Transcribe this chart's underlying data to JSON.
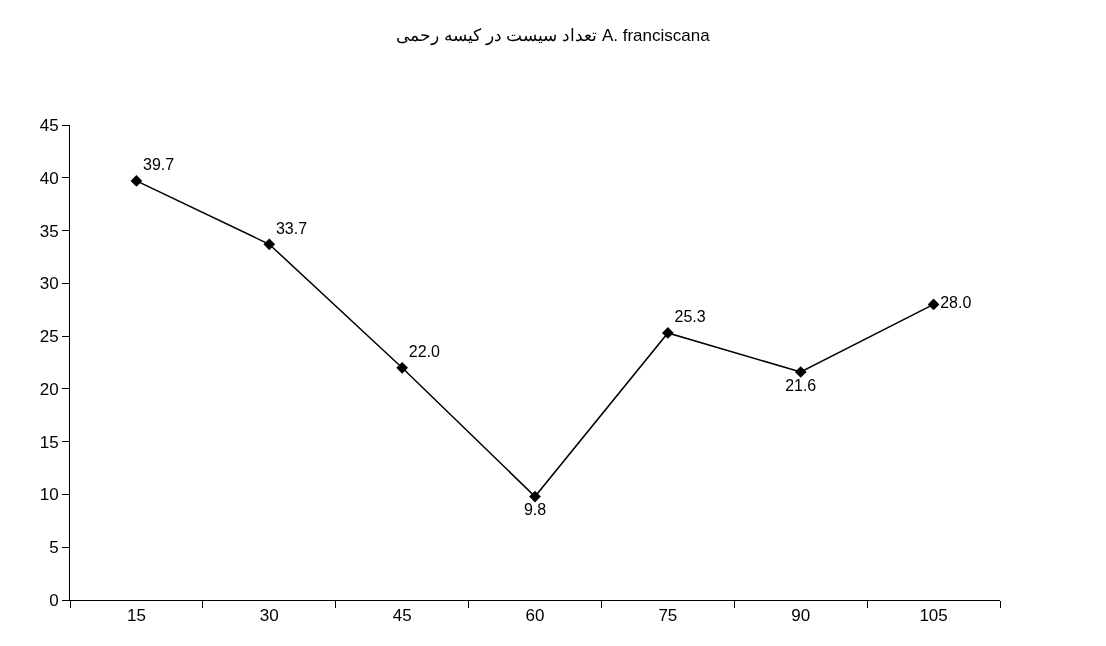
{
  "chart_data": {
    "type": "line",
    "title": "تعداد سیست در کیسه رحمی A. franciscana",
    "categories": [
      "15",
      "30",
      "45",
      "60",
      "75",
      "90",
      "105"
    ],
    "series": [
      {
        "color": "#000000",
        "values": [
          39.7,
          33.7,
          22.0,
          9.8,
          25.3,
          21.6,
          28.0
        ],
        "value_labels": [
          "39.7",
          "33.7",
          "22.0",
          "9.8",
          "25.3",
          "21.6",
          "28.0"
        ]
      }
    ],
    "ylim": [
      0,
      45
    ],
    "yticks": [
      0,
      5,
      10,
      15,
      20,
      25,
      30,
      35,
      40,
      45
    ],
    "legend": false,
    "marker": "diamond",
    "line_style": "solid"
  }
}
